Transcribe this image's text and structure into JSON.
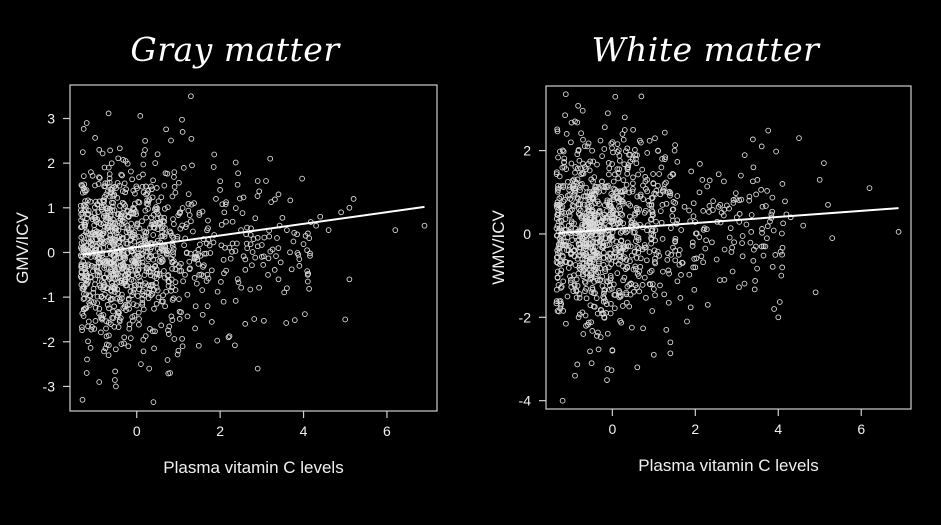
{
  "chart_data": [
    {
      "type": "scatter",
      "title": "Gray matter",
      "xlabel": "Plasma vitamin C levels",
      "ylabel": "GMV/ICV",
      "xlim": [
        -1.6,
        7.2
      ],
      "ylim": [
        -3.55,
        3.75
      ],
      "xticks": [
        0,
        2,
        4,
        6
      ],
      "yticks": [
        -3,
        -2,
        -1,
        0,
        1,
        2,
        3
      ],
      "grid": false,
      "trend_line": {
        "x": [
          -1.3,
          6.9
        ],
        "y": [
          -0.05,
          1.02
        ]
      },
      "colors": {
        "background": "#000000",
        "points": "#d9d9d9",
        "line": "#ffffff"
      },
      "series": [
        {
          "x": [
            -1.2,
            -0.9,
            -1.1,
            -0.6,
            0.5,
            0.2,
            1.3,
            -1.3,
            -1.2,
            -0.9,
            -0.5,
            0.3,
            1.0,
            1.1,
            1.4,
            1.7,
            0.8,
            2.2,
            2.9,
            3.2,
            3.1,
            3.4,
            3.6,
            4.3,
            4.4,
            4.6,
            4.9,
            5.1,
            5.2,
            5.1,
            5.0,
            6.2,
            6.9,
            4.1,
            3.9,
            3.6,
            3.0,
            2.8,
            2.5,
            2.3,
            2.1,
            1.9,
            1.6,
            1.5,
            1.2,
            -1.0,
            -0.8,
            -0.3,
            0.1,
            0.6,
            0.9,
            -1.1,
            1.1,
            2.4,
            2.9,
            3.4,
            0.4,
            -0.2,
            1.8,
            2.6,
            2.0,
            1.3
          ],
          "y": [
            2.9,
            2.3,
            1.8,
            2.0,
            2.2,
            2.5,
            3.5,
            -3.3,
            -2.7,
            -2.9,
            -3.0,
            -2.6,
            -2.2,
            -2.1,
            -1.7,
            -1.2,
            -2.7,
            -1.9,
            -2.6,
            2.1,
            1.6,
            1.3,
            0.5,
            0.6,
            0.8,
            0.5,
            0.9,
            1.0,
            1.2,
            -0.6,
            -1.5,
            0.5,
            0.6,
            -0.5,
            -0.3,
            -0.8,
            -0.1,
            0.3,
            0.5,
            0.2,
            0.9,
            1.2,
            0.3,
            -0.5,
            0.0,
            1.5,
            -1.4,
            -1.9,
            -2.5,
            -1.1,
            1.8,
            0.2,
            2.7,
            0.2,
            1.6,
            -0.6,
            -3.35,
            -2.1,
            -0.4,
            -1.6,
            1.4,
            0.7
          ]
        }
      ]
    },
    {
      "type": "scatter",
      "title": "White matter",
      "xlabel": "Plasma vitamin C levels",
      "ylabel": "WMV/ICV",
      "xlim": [
        -1.6,
        7.2
      ],
      "ylim": [
        -4.2,
        3.55
      ],
      "xticks": [
        0,
        2,
        4,
        6
      ],
      "yticks": [
        -4,
        -2,
        0,
        2
      ],
      "grid": false,
      "trend_line": {
        "x": [
          -1.3,
          6.9
        ],
        "y": [
          0.02,
          0.62
        ]
      },
      "colors": {
        "background": "#000000",
        "points": "#d9d9d9",
        "line": "#ffffff"
      },
      "series": [
        {
          "x": [
            -1.1,
            -0.9,
            -0.6,
            0.5,
            0.7,
            0.3,
            -1.2,
            -0.9,
            -0.5,
            0.0,
            0.6,
            1.0,
            1.4,
            1.8,
            2.3,
            2.7,
            3.1,
            3.4,
            3.6,
            4.1,
            4.5,
            5.0,
            5.1,
            5.2,
            6.2,
            6.9,
            4.9,
            4.6,
            3.9,
            4.0,
            3.6,
            3.0,
            2.6,
            2.1,
            1.9,
            1.5,
            1.2,
            2.9,
            2.4,
            -1.0,
            -0.7,
            -0.2,
            0.2,
            0.9,
            1.1,
            1.6,
            3.3,
            3.8,
            2.2,
            -1.3,
            0.4,
            1.3,
            2.0,
            4.3,
            5.3
          ],
          "y": [
            2.4,
            2.7,
            2.1,
            2.5,
            3.3,
            2.8,
            -4.0,
            -3.4,
            -3.1,
            -2.8,
            -3.2,
            -2.9,
            -2.6,
            -2.1,
            -1.7,
            -1.1,
            1.4,
            1.6,
            2.1,
            1.2,
            2.3,
            1.3,
            1.7,
            0.7,
            1.1,
            0.05,
            -1.4,
            0.2,
            -1.8,
            -2.0,
            -0.3,
            0.4,
            0.7,
            1.0,
            1.5,
            2.0,
            1.8,
            -0.9,
            -0.2,
            2.2,
            -2.4,
            -2.0,
            -1.5,
            -1.2,
            2.0,
            -0.5,
            0.8,
            0.3,
            0.1,
            0.5,
            1.9,
            -2.3,
            -0.8,
            0.4,
            -0.1
          ]
        }
      ]
    }
  ]
}
